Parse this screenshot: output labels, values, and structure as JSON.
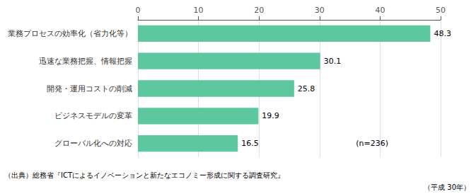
{
  "chart_data": {
    "type": "bar",
    "orientation": "horizontal",
    "categories": [
      "グローバル化への対応",
      "ビジネスモデルの変革",
      "開発・運用コストの削減",
      "迅速な業務把握、情報把握",
      "業務プロセスの効率化（省力化等）"
    ],
    "values": [
      16.5,
      19.9,
      25.8,
      30.1,
      48.3
    ],
    "color": "#5dc8a0",
    "xlim": [
      0,
      50
    ],
    "xticks": [
      0,
      10,
      20,
      30,
      40,
      50
    ],
    "grid": true,
    "data_labels": true,
    "annotations": [
      "(n=236)",
      "（出典）総務省『ICTによるイノベーションと新たなエコノミー形成に関する調査研究』",
      "（平成 30年）"
    ]
  }
}
